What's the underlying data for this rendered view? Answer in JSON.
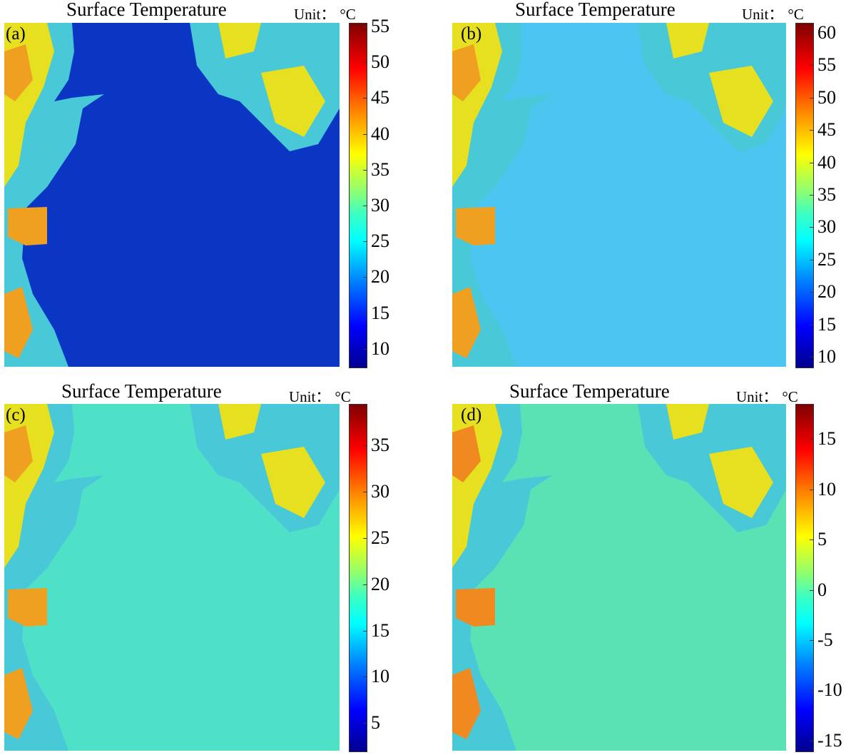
{
  "chart_data": [
    {
      "type": "heatmap",
      "panel_label": "(a)",
      "title": "Surface Temperature",
      "unit_label": "Unit：",
      "unit_symbol": "°C",
      "colorbar": {
        "min": 7.5,
        "max": 55.5,
        "ticks": [
          10,
          15,
          20,
          25,
          30,
          35,
          40,
          45,
          50,
          55
        ]
      },
      "water_value": 11,
      "colors": {
        "water": "#0b36c4",
        "land_hot": "#f0a020",
        "land_warm": "#e6e020",
        "land_cool": "#49c8d8"
      }
    },
    {
      "type": "heatmap",
      "panel_label": "(b)",
      "title": "Surface Temperature",
      "unit_label": "Unit：",
      "unit_symbol": "°C",
      "colorbar": {
        "min": 8.5,
        "max": 61.5,
        "ticks": [
          10,
          15,
          20,
          25,
          30,
          35,
          40,
          45,
          50,
          55,
          60
        ]
      },
      "water_value": 25,
      "colors": {
        "water": "#4cc6f0",
        "land_hot": "#f0a020",
        "land_warm": "#e6e020",
        "land_cool": "#49c8d8"
      }
    },
    {
      "type": "heatmap",
      "panel_label": "(c)",
      "title": "Surface Temperature",
      "unit_label": "Unit：",
      "unit_symbol": "°C",
      "colorbar": {
        "min": 2,
        "max": 39.5,
        "ticks": [
          5,
          10,
          15,
          20,
          25,
          30,
          35
        ]
      },
      "water_value": 18,
      "colors": {
        "water": "#4fe0c8",
        "land_hot": "#f0a020",
        "land_warm": "#e6e020",
        "land_cool": "#49c8d8"
      }
    },
    {
      "type": "heatmap",
      "panel_label": "(d)",
      "title": "Surface Temperature",
      "unit_label": "Unit：",
      "unit_symbol": "°C",
      "colorbar": {
        "min": -16,
        "max": 18.5,
        "ticks": [
          -15,
          -10,
          -5,
          0,
          5,
          10,
          15
        ]
      },
      "water_value": 0,
      "colors": {
        "water": "#5ae2b4",
        "land_hot": "#f08a20",
        "land_warm": "#e6e020",
        "land_cool": "#49c8d8"
      }
    }
  ]
}
